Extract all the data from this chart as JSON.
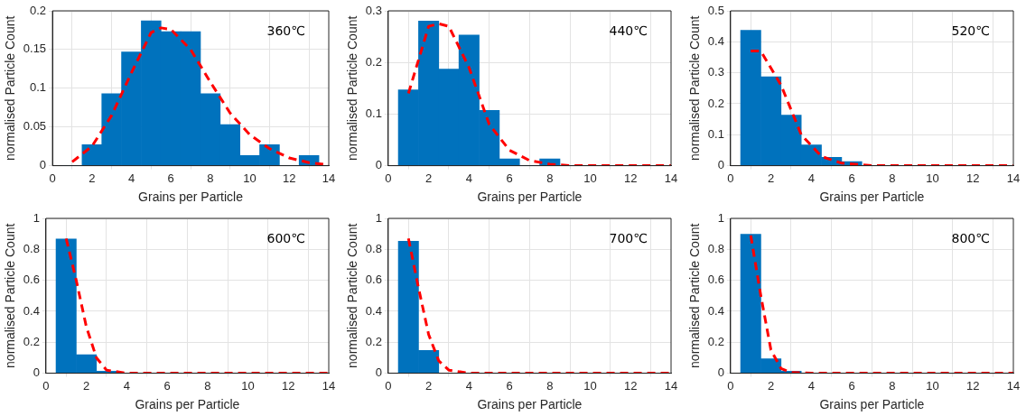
{
  "chart_data": [
    {
      "type": "histogram",
      "xlabel": "Grains per Particle",
      "ylabel": "normalised Particle Count",
      "annotations": [
        "360℃"
      ],
      "xlim": [
        0,
        14
      ],
      "xticks": [
        0,
        2,
        4,
        6,
        8,
        10,
        12,
        14
      ],
      "ylim": [
        0,
        0.2
      ],
      "yticks": [
        0,
        0.05,
        0.1,
        0.15,
        0.2
      ],
      "grid": true,
      "series": [
        {
          "color": "#0072bd",
          "bins": [
            0.5,
            1.5,
            2.5,
            3.5,
            4.5,
            5.5,
            6.5,
            7.5,
            8.5,
            9.5,
            10.5,
            11.5,
            12.5,
            13.5
          ],
          "values": [
            0,
            0.027,
            0.093,
            0.147,
            0.187,
            0.173,
            0.173,
            0.093,
            0.053,
            0.013,
            0.027,
            0,
            0.013
          ]
        },
        {
          "type": "line",
          "color": "#ff0000",
          "line_style": "dashed",
          "marker": "none",
          "x": [
            1,
            2,
            3,
            4,
            5,
            5.5,
            6,
            7,
            8,
            9,
            10,
            11,
            12,
            13,
            14
          ],
          "values": [
            0.005,
            0.025,
            0.065,
            0.12,
            0.172,
            0.178,
            0.176,
            0.15,
            0.108,
            0.068,
            0.04,
            0.022,
            0.01,
            0.004,
            0.001
          ]
        }
      ]
    },
    {
      "type": "histogram",
      "xlabel": "Grains per Particle",
      "ylabel": "normalised Particle Count",
      "annotations": [
        "440℃"
      ],
      "xlim": [
        0,
        14
      ],
      "xticks": [
        0,
        2,
        4,
        6,
        8,
        10,
        12,
        14
      ],
      "ylim": [
        0,
        0.3
      ],
      "yticks": [
        0,
        0.1,
        0.2,
        0.3
      ],
      "grid": true,
      "series": [
        {
          "color": "#0072bd",
          "bins": [
            0.5,
            1.5,
            2.5,
            3.5,
            4.5,
            5.5,
            6.5,
            7.5,
            8.5
          ],
          "values": [
            0.147,
            0.28,
            0.187,
            0.253,
            0.107,
            0.013,
            0,
            0.013
          ]
        },
        {
          "type": "line",
          "color": "#ff0000",
          "line_style": "dashed",
          "marker": "none",
          "x": [
            1,
            2,
            2.5,
            3,
            4,
            5,
            6,
            7,
            8,
            9,
            14
          ],
          "values": [
            0.14,
            0.27,
            0.275,
            0.27,
            0.19,
            0.08,
            0.03,
            0.01,
            0.003,
            0,
            0
          ]
        }
      ]
    },
    {
      "type": "histogram",
      "xlabel": "Grains per Particle",
      "ylabel": "normalised Particle Count",
      "annotations": [
        "520℃"
      ],
      "xlim": [
        0,
        14
      ],
      "xticks": [
        0,
        2,
        4,
        6,
        8,
        10,
        12,
        14
      ],
      "ylim": [
        0,
        0.5
      ],
      "yticks": [
        0,
        0.1,
        0.2,
        0.3,
        0.4,
        0.5
      ],
      "grid": true,
      "series": [
        {
          "color": "#0072bd",
          "bins": [
            0.5,
            1.5,
            2.5,
            3.5,
            4.5,
            5.5,
            6.5
          ],
          "values": [
            0.437,
            0.287,
            0.163,
            0.067,
            0.027,
            0.013
          ]
        },
        {
          "type": "line",
          "color": "#ff0000",
          "line_style": "dashed",
          "marker": "none",
          "x": [
            1,
            1.5,
            2.5,
            3.5,
            4.5,
            5.5,
            7,
            14
          ],
          "values": [
            0.37,
            0.37,
            0.26,
            0.1,
            0.03,
            0.008,
            0,
            0
          ]
        }
      ]
    },
    {
      "type": "histogram",
      "xlabel": "Grains per Particle",
      "ylabel": "normalised Particle Count",
      "annotations": [
        "600℃"
      ],
      "xlim": [
        0,
        14
      ],
      "xticks": [
        0,
        2,
        4,
        6,
        8,
        10,
        12,
        14
      ],
      "ylim": [
        0,
        1
      ],
      "yticks": [
        0,
        0.2,
        0.4,
        0.6,
        0.8,
        1
      ],
      "grid": true,
      "series": [
        {
          "color": "#0072bd",
          "bins": [
            0.5,
            1.5,
            2.5,
            3.5
          ],
          "values": [
            0.867,
            0.12,
            0.013
          ]
        },
        {
          "type": "line",
          "color": "#ff0000",
          "line_style": "dashed",
          "marker": "none",
          "x": [
            1,
            1.5,
            2,
            2.5,
            3,
            4,
            14
          ],
          "values": [
            0.87,
            0.6,
            0.3,
            0.1,
            0.02,
            0,
            0
          ]
        }
      ]
    },
    {
      "type": "histogram",
      "xlabel": "Grains per Particle",
      "ylabel": "normalised Particle Count",
      "annotations": [
        "700℃"
      ],
      "xlim": [
        0,
        14
      ],
      "xticks": [
        0,
        2,
        4,
        6,
        8,
        10,
        12,
        14
      ],
      "ylim": [
        0,
        1
      ],
      "yticks": [
        0,
        0.2,
        0.4,
        0.6,
        0.8,
        1
      ],
      "grid": true,
      "series": [
        {
          "color": "#0072bd",
          "bins": [
            0.5,
            1.5,
            2.5
          ],
          "values": [
            0.853,
            0.147
          ]
        },
        {
          "type": "line",
          "color": "#ff0000",
          "line_style": "dashed",
          "marker": "none",
          "x": [
            1,
            1.5,
            2,
            2.5,
            3,
            4,
            14
          ],
          "values": [
            0.87,
            0.55,
            0.25,
            0.08,
            0.02,
            0,
            0
          ]
        }
      ]
    },
    {
      "type": "histogram",
      "xlabel": "Grains per Particle",
      "ylabel": "normalised Particle Count",
      "annotations": [
        "800℃"
      ],
      "xlim": [
        0,
        14
      ],
      "xticks": [
        0,
        2,
        4,
        6,
        8,
        10,
        12,
        14
      ],
      "ylim": [
        0,
        1
      ],
      "yticks": [
        0,
        0.2,
        0.4,
        0.6,
        0.8,
        1
      ],
      "grid": true,
      "series": [
        {
          "color": "#0072bd",
          "bins": [
            0.5,
            1.5,
            2.5,
            3.5
          ],
          "values": [
            0.897,
            0.093,
            0.013
          ]
        },
        {
          "type": "line",
          "color": "#ff0000",
          "line_style": "dashed",
          "marker": "none",
          "x": [
            1,
            1.5,
            2,
            2.5,
            3,
            4,
            14
          ],
          "values": [
            0.89,
            0.5,
            0.15,
            0.03,
            0.005,
            0,
            0
          ]
        }
      ]
    }
  ]
}
